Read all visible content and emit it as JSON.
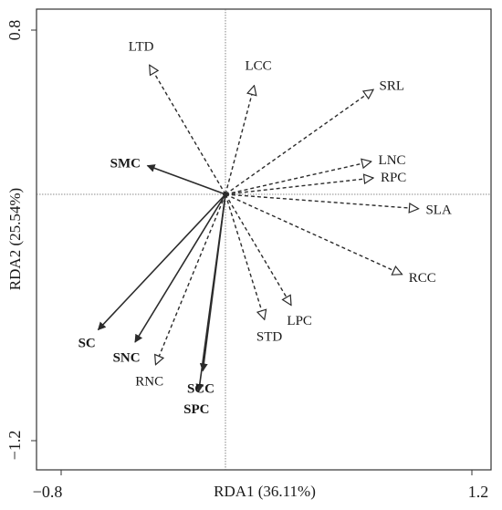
{
  "chart_data": {
    "type": "rda-biplot",
    "xlabel": "RDA1 (36.11%)",
    "ylabel": "RDA2 (25.54%)",
    "xlim": [
      -0.8,
      1.2
    ],
    "ylim": [
      -1.2,
      0.8
    ],
    "x_tick_labels": [
      "−0.8",
      "1.2"
    ],
    "y_tick_labels": [
      "0.8",
      "−1.2"
    ],
    "reference_lines": {
      "x": 0,
      "y": 0
    },
    "groups": [
      {
        "name": "solid",
        "line": "solid",
        "head": "filled",
        "color": "#2b2b2b"
      },
      {
        "name": "dashed",
        "line": "dashed",
        "head": "open",
        "color": "#2b2b2b"
      }
    ],
    "vectors": [
      {
        "label": "LTD",
        "x": -0.37,
        "y": 0.63,
        "group": "dashed"
      },
      {
        "label": "LCC",
        "x": 0.14,
        "y": 0.53,
        "group": "dashed"
      },
      {
        "label": "SRL",
        "x": 0.72,
        "y": 0.51,
        "group": "dashed"
      },
      {
        "label": "LNC",
        "x": 0.71,
        "y": 0.16,
        "group": "dashed"
      },
      {
        "label": "RPC",
        "x": 0.72,
        "y": 0.08,
        "group": "dashed"
      },
      {
        "label": "SLA",
        "x": 0.94,
        "y": -0.07,
        "group": "dashed"
      },
      {
        "label": "RCC",
        "x": 0.86,
        "y": -0.39,
        "group": "dashed"
      },
      {
        "label": "LPC",
        "x": 0.32,
        "y": -0.54,
        "group": "dashed"
      },
      {
        "label": "STD",
        "x": 0.19,
        "y": -0.61,
        "group": "dashed"
      },
      {
        "label": "RNC",
        "x": -0.34,
        "y": -0.83,
        "group": "dashed"
      },
      {
        "label": "SMC",
        "x": -0.38,
        "y": 0.14,
        "group": "solid"
      },
      {
        "label": "SC",
        "x": -0.62,
        "y": -0.66,
        "group": "solid"
      },
      {
        "label": "SNC",
        "x": -0.44,
        "y": -0.72,
        "group": "solid"
      },
      {
        "label": "SCC",
        "x": -0.11,
        "y": -0.86,
        "group": "solid"
      },
      {
        "label": "SPC",
        "x": -0.13,
        "y": -0.96,
        "group": "solid"
      }
    ]
  }
}
